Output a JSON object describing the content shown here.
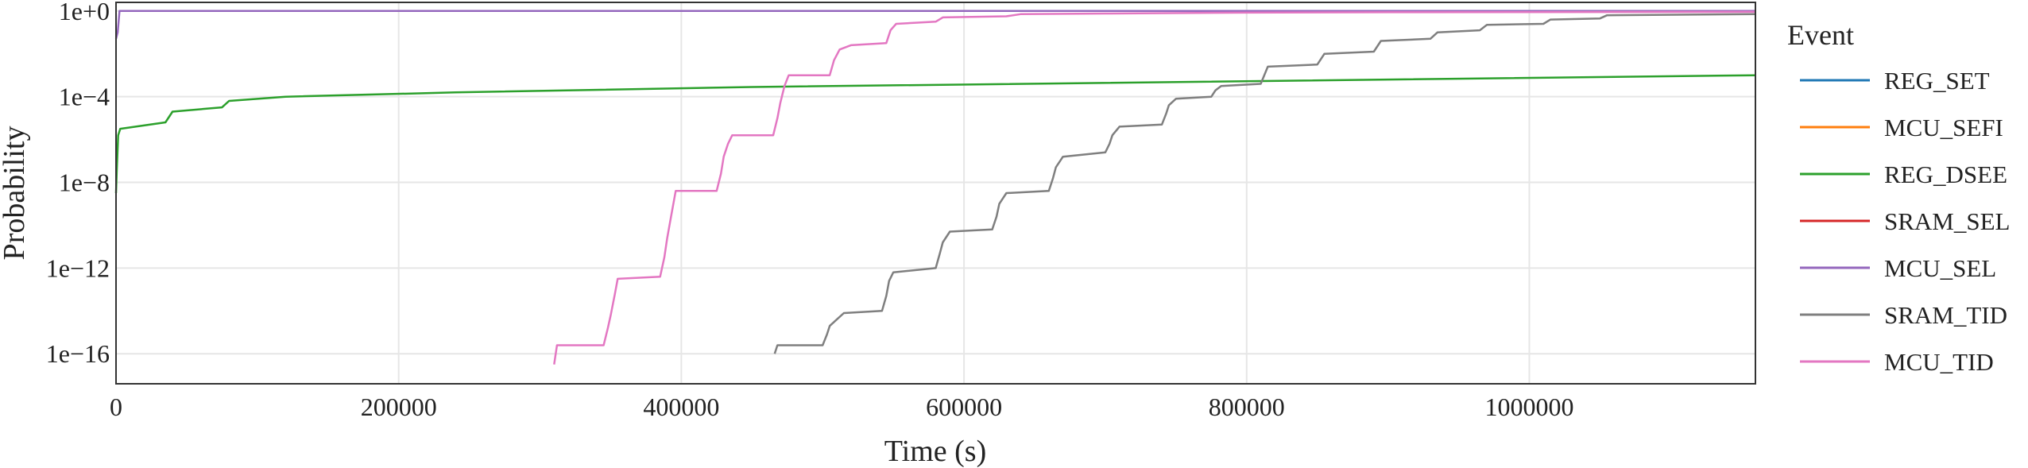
{
  "chart_data": {
    "type": "line",
    "title": "",
    "xlabel": "Time (s)",
    "ylabel": "Probability",
    "x_scale": "linear",
    "y_scale": "log",
    "xlim": [
      0,
      1160000
    ],
    "ylim_log10": [
      -17.4,
      0.4
    ],
    "x_ticks": [
      0,
      200000,
      400000,
      600000,
      800000,
      1000000
    ],
    "x_tick_labels": [
      "0",
      "200000",
      "400000",
      "600000",
      "800000",
      "1000000"
    ],
    "y_ticks_log10": [
      0,
      -4,
      -8,
      -12,
      -16
    ],
    "y_tick_labels": [
      "1e+0",
      "1e−4",
      "1e−8",
      "1e−12",
      "1e−16"
    ],
    "grid": true,
    "legend_title": "Event",
    "legend_position": "right",
    "series": [
      {
        "name": "REG_SET",
        "color": "#1f77b4",
        "points": []
      },
      {
        "name": "MCU_SEFI",
        "color": "#ff7f0e",
        "points": []
      },
      {
        "name": "REG_DSEE",
        "color": "#2ca02c",
        "points": [
          [
            0,
            -8.5
          ],
          [
            500,
            -7.5
          ],
          [
            1500,
            -5.8
          ],
          [
            3000,
            -5.5
          ],
          [
            35000,
            -5.2
          ],
          [
            40000,
            -4.7
          ],
          [
            75000,
            -4.5
          ],
          [
            80000,
            -4.2
          ],
          [
            120000,
            -4.0
          ],
          [
            240000,
            -3.8
          ],
          [
            450000,
            -3.55
          ],
          [
            1160000,
            -3.0
          ]
        ]
      },
      {
        "name": "SRAM_SEL",
        "color": "#d62728",
        "points": []
      },
      {
        "name": "MCU_SEL",
        "color": "#9467bd",
        "points": [
          [
            0,
            -1.3
          ],
          [
            1200,
            -1.0
          ],
          [
            2500,
            0.0
          ],
          [
            1160000,
            0.0
          ]
        ]
      },
      {
        "name": "SRAM_TID",
        "color": "#7f7f7f",
        "points": [
          [
            466000,
            -16.0
          ],
          [
            468000,
            -15.6
          ],
          [
            500000,
            -15.6
          ],
          [
            503000,
            -15.1
          ],
          [
            505000,
            -14.7
          ],
          [
            510000,
            -14.4
          ],
          [
            515000,
            -14.1
          ],
          [
            542000,
            -14.0
          ],
          [
            545000,
            -13.3
          ],
          [
            547000,
            -12.6
          ],
          [
            550000,
            -12.2
          ],
          [
            580000,
            -12.0
          ],
          [
            583000,
            -11.3
          ],
          [
            585000,
            -10.8
          ],
          [
            590000,
            -10.3
          ],
          [
            620000,
            -10.2
          ],
          [
            623000,
            -9.6
          ],
          [
            625000,
            -9.0
          ],
          [
            630000,
            -8.5
          ],
          [
            660000,
            -8.4
          ],
          [
            663000,
            -7.8
          ],
          [
            665000,
            -7.3
          ],
          [
            670000,
            -6.8
          ],
          [
            700000,
            -6.6
          ],
          [
            703000,
            -6.2
          ],
          [
            705000,
            -5.8
          ],
          [
            710000,
            -5.4
          ],
          [
            740000,
            -5.3
          ],
          [
            743000,
            -4.8
          ],
          [
            745000,
            -4.4
          ],
          [
            750000,
            -4.1
          ],
          [
            775000,
            -4.0
          ],
          [
            778000,
            -3.7
          ],
          [
            782000,
            -3.5
          ],
          [
            810000,
            -3.4
          ],
          [
            815000,
            -2.6
          ],
          [
            850000,
            -2.5
          ],
          [
            855000,
            -2.0
          ],
          [
            890000,
            -1.9
          ],
          [
            895000,
            -1.4
          ],
          [
            930000,
            -1.3
          ],
          [
            935000,
            -1.0
          ],
          [
            965000,
            -0.9
          ],
          [
            970000,
            -0.65
          ],
          [
            1010000,
            -0.6
          ],
          [
            1015000,
            -0.4
          ],
          [
            1050000,
            -0.35
          ],
          [
            1055000,
            -0.2
          ],
          [
            1160000,
            -0.15
          ]
        ]
      },
      {
        "name": "MCU_TID",
        "color": "#e377c2",
        "points": [
          [
            310000,
            -16.5
          ],
          [
            312000,
            -15.6
          ],
          [
            345000,
            -15.6
          ],
          [
            348000,
            -14.8
          ],
          [
            350000,
            -14.2
          ],
          [
            353000,
            -13.2
          ],
          [
            355000,
            -12.5
          ],
          [
            385000,
            -12.4
          ],
          [
            388000,
            -11.5
          ],
          [
            390000,
            -10.6
          ],
          [
            393000,
            -9.5
          ],
          [
            396000,
            -8.4
          ],
          [
            425000,
            -8.4
          ],
          [
            428000,
            -7.6
          ],
          [
            430000,
            -6.8
          ],
          [
            433000,
            -6.2
          ],
          [
            436000,
            -5.8
          ],
          [
            465000,
            -5.8
          ],
          [
            468000,
            -5.0
          ],
          [
            470000,
            -4.3
          ],
          [
            473000,
            -3.5
          ],
          [
            476000,
            -3.0
          ],
          [
            505000,
            -3.0
          ],
          [
            508000,
            -2.3
          ],
          [
            512000,
            -1.8
          ],
          [
            520000,
            -1.6
          ],
          [
            545000,
            -1.5
          ],
          [
            548000,
            -0.9
          ],
          [
            552000,
            -0.6
          ],
          [
            580000,
            -0.5
          ],
          [
            585000,
            -0.3
          ],
          [
            630000,
            -0.25
          ],
          [
            640000,
            -0.15
          ],
          [
            700000,
            -0.12
          ],
          [
            800000,
            -0.08
          ],
          [
            900000,
            -0.06
          ],
          [
            1160000,
            -0.04
          ]
        ]
      }
    ]
  }
}
